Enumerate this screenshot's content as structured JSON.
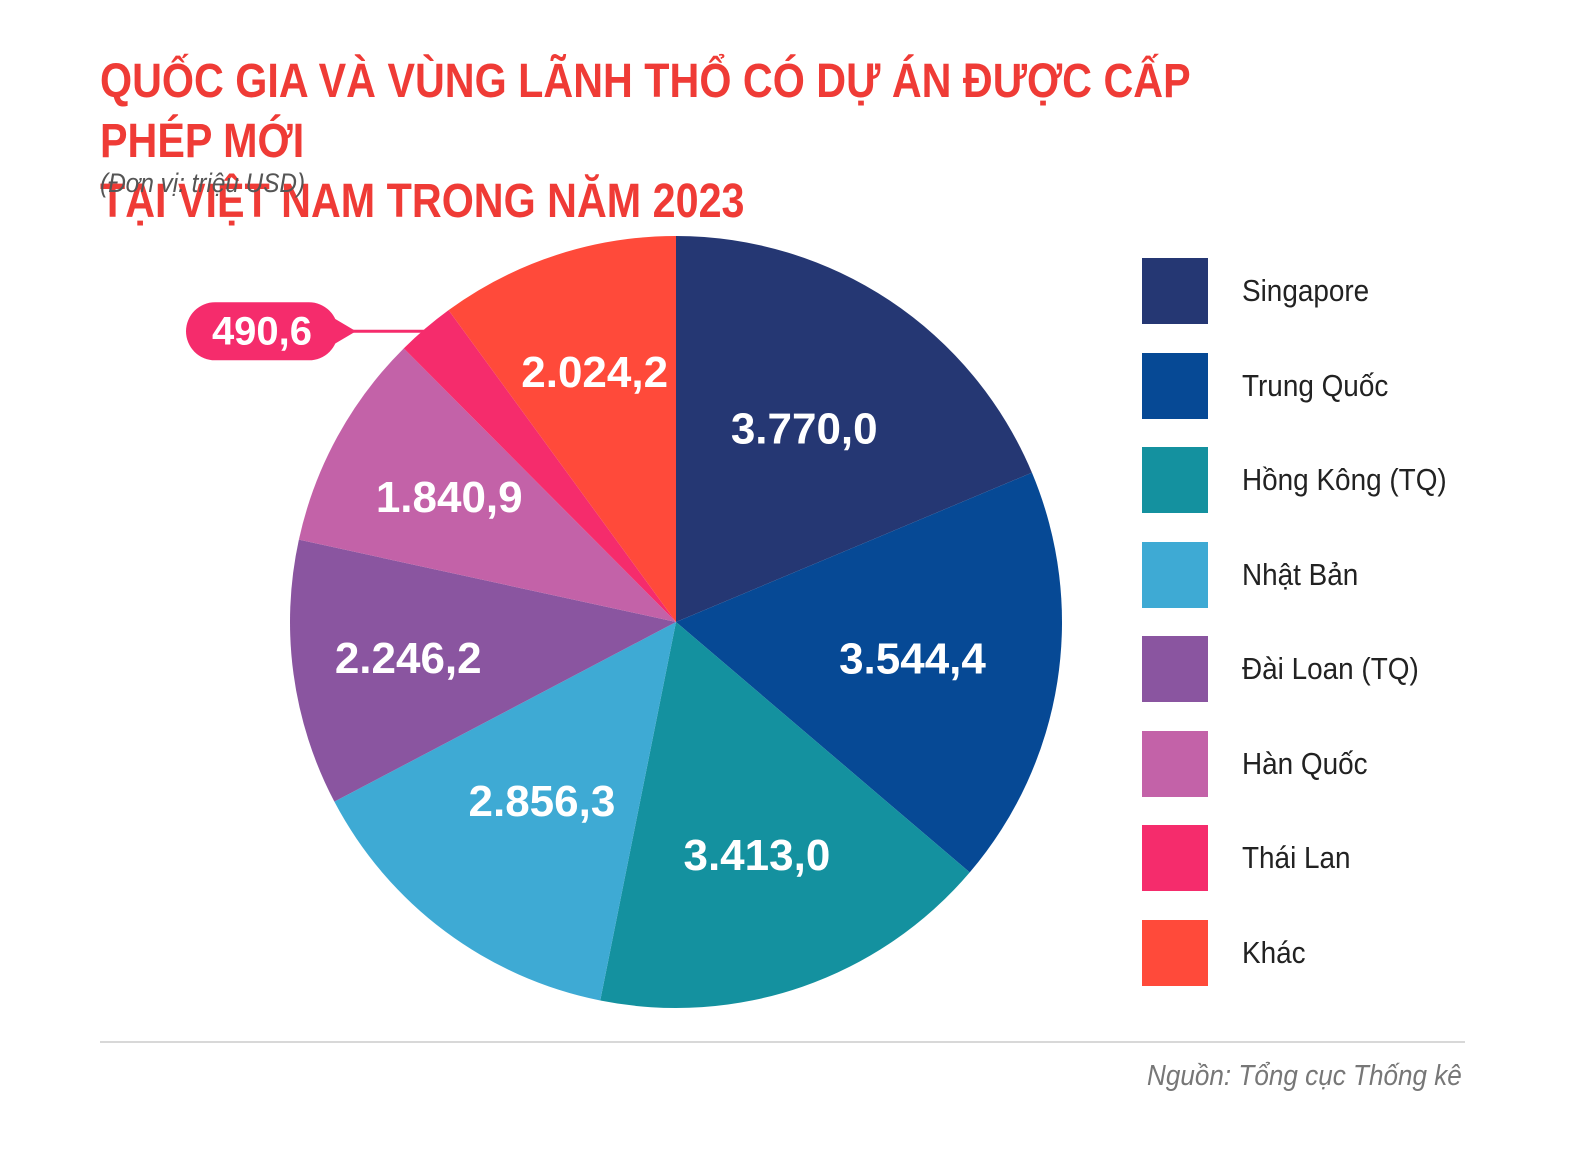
{
  "title_line1": "QUỐC GIA VÀ VÙNG LÃNH THỔ CÓ DỰ ÁN ĐƯỢC CẤP PHÉP MỚI",
  "title_line2": "TẠI VIỆT NAM TRONG NĂM 2023",
  "subtitle": "(Đơn vị: triệu USD)",
  "source": "Nguồn: Tổng cục Thống kê",
  "chart_data": {
    "type": "pie",
    "title": "QUỐC GIA VÀ VÙNG LÃNH THỔ CÓ DỰ ÁN ĐƯỢC CẤP PHÉP MỚI TẠI VIỆT NAM TRONG NĂM 2023",
    "unit": "(Đơn vị: triệu USD)",
    "legend_position": "right",
    "slices": [
      {
        "name": "Singapore",
        "value": 3770.0,
        "label": "3.770,0",
        "color": "#253773"
      },
      {
        "name": "Trung Quốc",
        "value": 3544.4,
        "label": "3.544,4",
        "color": "#064995"
      },
      {
        "name": "Hồng Kông (TQ)",
        "value": 3413.0,
        "label": "3.413,0",
        "color": "#14919f"
      },
      {
        "name": "Nhật Bản",
        "value": 2856.3,
        "label": "2.856,3",
        "color": "#3eaad4"
      },
      {
        "name": "Đài Loan (TQ)",
        "value": 2246.2,
        "label": "2.246,2",
        "color": "#8a55a0"
      },
      {
        "name": "Hàn Quốc",
        "value": 1840.9,
        "label": "1.840,9",
        "color": "#c362a8"
      },
      {
        "name": "Thái Lan",
        "value": 490.6,
        "label": "490,6",
        "color": "#f52c6c"
      },
      {
        "name": "Khác",
        "value": 2024.2,
        "label": "2.024,2",
        "color": "#ff4a3a"
      }
    ]
  }
}
